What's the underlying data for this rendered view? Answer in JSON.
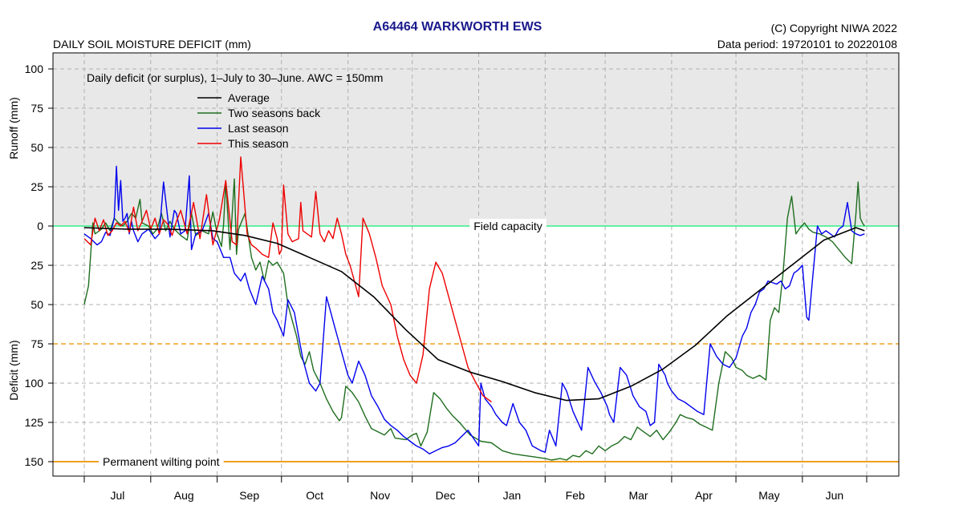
{
  "header": {
    "station": "A64464  WARKWORTH EWS",
    "chart_title": "DAILY SOIL MOISTURE DEFICIT (mm)",
    "copyright": "(C) Copyright NIWA  2022",
    "data_period": "Data period:  19720101  to  20220108"
  },
  "colors": {
    "background": "#ffffff",
    "runoff_zone": "#e8e8e8",
    "grid": "#b0b0b0",
    "average": "#000000",
    "two_seasons_back": "#1f6e1f",
    "last_season": "#0000ee",
    "this_season": "#ee0000",
    "field_capacity": "#33ee88",
    "awc_line": "#f0a020",
    "wilting_point": "#f0a020",
    "title": "#1a1a8c"
  },
  "chart_data": {
    "type": "line",
    "subtitle": "Daily deficit (or surplus), 1–July to 30–June.  AWC = 150mm",
    "ylabel_top": "Runoff (mm)",
    "ylabel_bottom": "Deficit (mm)",
    "ylim": [
      -160,
      110
    ],
    "y_ticks": [
      100,
      75,
      50,
      25,
      0,
      -25,
      -50,
      -75,
      -100,
      -125,
      -150
    ],
    "y_tick_labels": [
      "100",
      "75",
      "50",
      "25",
      "0",
      "25",
      "50",
      "75",
      "100",
      "125",
      "150"
    ],
    "xlim": [
      0,
      365
    ],
    "month_labels": [
      "Jul",
      "Aug",
      "Sep",
      "Oct",
      "Nov",
      "Dec",
      "Jan",
      "Feb",
      "Mar",
      "Apr",
      "May",
      "Jun"
    ],
    "month_boundaries": [
      0,
      31,
      62,
      92,
      123,
      153,
      184,
      215,
      243,
      274,
      304,
      335,
      365
    ],
    "grid": true,
    "legend_position": "top-left",
    "reference_lines": [
      {
        "name": "field_capacity",
        "label": "Field capacity",
        "y": 0
      },
      {
        "name": "awc_half",
        "label": "",
        "y": -75
      },
      {
        "name": "wilting_point",
        "label": "Permanent wilting point",
        "y": -150
      }
    ],
    "series": [
      {
        "name": "Average",
        "key": "average",
        "x": [
          0,
          20,
          40,
          60,
          75,
          90,
          105,
          120,
          135,
          150,
          165,
          180,
          195,
          210,
          225,
          240,
          255,
          270,
          285,
          300,
          315,
          330,
          345,
          360,
          364
        ],
        "y": [
          -1,
          -2,
          -2,
          -3,
          -6,
          -11,
          -20,
          -29,
          -45,
          -66,
          -85,
          -93,
          -99,
          -106,
          -111,
          -110,
          -102,
          -91,
          -76,
          -57,
          -41,
          -25,
          -9,
          -1,
          -3
        ]
      },
      {
        "name": "Two seasons back",
        "key": "two_seasons_back",
        "x": [
          0,
          2,
          4,
          5,
          8,
          10,
          12,
          14,
          16,
          18,
          20,
          22,
          24,
          26,
          27,
          30,
          32,
          34,
          36,
          38,
          40,
          42,
          45,
          48,
          50,
          52,
          55,
          58,
          60,
          62,
          64,
          65,
          66,
          68,
          70,
          71,
          72,
          75,
          78,
          80,
          82,
          84,
          86,
          88,
          90,
          93,
          95,
          97,
          99,
          101,
          103,
          105,
          107,
          110,
          113,
          116,
          119,
          120,
          122,
          125,
          128,
          131,
          134,
          137,
          140,
          143,
          145,
          150,
          153,
          155,
          157,
          158,
          160,
          163,
          166,
          169,
          172,
          175,
          180,
          185,
          190,
          195,
          200,
          205,
          210,
          215,
          218,
          222,
          225,
          228,
          231,
          234,
          237,
          240,
          243,
          246,
          249,
          252,
          255,
          258,
          261,
          264,
          267,
          270,
          273,
          276,
          278,
          281,
          284,
          287,
          290,
          293,
          296,
          299,
          302,
          304,
          307,
          309,
          312,
          315,
          318,
          320,
          322,
          324,
          326,
          328,
          330,
          332,
          334,
          336,
          338,
          340,
          343,
          346,
          349,
          352,
          355,
          358,
          360,
          361,
          362,
          363,
          364
        ],
        "y": [
          -50,
          -38,
          2,
          -5,
          -2,
          2,
          -3,
          5,
          2,
          0,
          3,
          8,
          5,
          17,
          2,
          0,
          -5,
          -2,
          8,
          -3,
          3,
          -2,
          -6,
          -9,
          8,
          -6,
          -3,
          -5,
          9,
          -5,
          -13,
          1,
          28,
          -15,
          30,
          -18,
          -2,
          8,
          -20,
          -28,
          -23,
          -35,
          -22,
          -25,
          -23,
          -30,
          -50,
          -60,
          -70,
          -83,
          -88,
          -80,
          -92,
          -100,
          -110,
          -118,
          -124,
          -122,
          -102,
          -106,
          -112,
          -121,
          -129,
          -131,
          -133,
          -129,
          -135,
          -136,
          -133,
          -132,
          -140,
          -137,
          -131,
          -106,
          -110,
          -116,
          -121,
          -125,
          -133,
          -137,
          -138,
          -143,
          -145,
          -146,
          -147,
          -148,
          -149,
          -148,
          -149,
          -146,
          -147,
          -143,
          -145,
          -140,
          -143,
          -140,
          -138,
          -134,
          -136,
          -128,
          -131,
          -134,
          -130,
          -136,
          -131,
          -125,
          -120,
          -122,
          -123,
          -126,
          -128,
          -130,
          -100,
          -80,
          -84,
          -90,
          -92,
          -95,
          -97,
          -95,
          -98,
          -60,
          -52,
          -55,
          -30,
          5,
          19,
          -5,
          -1,
          2,
          -2,
          -4,
          -5,
          -7,
          -10,
          -15,
          -20,
          -24,
          8,
          28,
          5,
          2,
          0
        ]
      },
      {
        "name": "Last season",
        "key": "last_season",
        "x": [
          0,
          3,
          6,
          8,
          10,
          12,
          14,
          15,
          16,
          17,
          18,
          19,
          20,
          21,
          22,
          23,
          25,
          27,
          30,
          33,
          35,
          37,
          40,
          42,
          43,
          45,
          47,
          49,
          50,
          52,
          55,
          58,
          60,
          62,
          65,
          68,
          70,
          73,
          75,
          77,
          80,
          83,
          86,
          88,
          90,
          93,
          95,
          98,
          100,
          102,
          105,
          108,
          110,
          113,
          115,
          117,
          119,
          121,
          123,
          125,
          128,
          131,
          134,
          137,
          140,
          143,
          146,
          149,
          152,
          155,
          158,
          161,
          164,
          167,
          170,
          173,
          176,
          179,
          184,
          185,
          187,
          190,
          192,
          195,
          197,
          200,
          203,
          206,
          209,
          213,
          215,
          217,
          220,
          223,
          225,
          228,
          232,
          235,
          238,
          241,
          244,
          245,
          247,
          250,
          253,
          256,
          259,
          262,
          264,
          266,
          268,
          271,
          272,
          274,
          277,
          280,
          283,
          286,
          289,
          292,
          295,
          298,
          301,
          304,
          307,
          309,
          311,
          313,
          315,
          317,
          319,
          321,
          323,
          325,
          327,
          329,
          331,
          333,
          335,
          337,
          338,
          340,
          342,
          344,
          346,
          348,
          350,
          352,
          354,
          356,
          358,
          360,
          362,
          364
        ],
        "y": [
          -5,
          -8,
          -12,
          -10,
          -4,
          -6,
          5,
          38,
          10,
          29,
          3,
          5,
          8,
          -5,
          3,
          -3,
          -10,
          -5,
          -2,
          -8,
          -5,
          28,
          -7,
          10,
          8,
          -5,
          -3,
          32,
          -15,
          -5,
          -3,
          8,
          -8,
          -10,
          -20,
          -20,
          -30,
          -35,
          -30,
          -40,
          -50,
          -32,
          -40,
          -55,
          -60,
          -70,
          -47,
          -55,
          -70,
          -85,
          -100,
          -105,
          -100,
          -45,
          -55,
          -65,
          -75,
          -85,
          -95,
          -100,
          -86,
          -95,
          -108,
          -115,
          -123,
          -127,
          -130,
          -134,
          -137,
          -140,
          -142,
          -145,
          -143,
          -141,
          -140,
          -138,
          -134,
          -130,
          -140,
          -100,
          -110,
          -115,
          -120,
          -125,
          -127,
          -113,
          -125,
          -130,
          -140,
          -143,
          -144,
          -130,
          -140,
          -100,
          -105,
          -118,
          -130,
          -90,
          -99,
          -106,
          -115,
          -120,
          -125,
          -90,
          -95,
          -108,
          -115,
          -118,
          -127,
          -125,
          -88,
          -95,
          -100,
          -105,
          -110,
          -112,
          -115,
          -118,
          -120,
          -75,
          -83,
          -88,
          -90,
          -84,
          -70,
          -65,
          -55,
          -50,
          -42,
          -40,
          -35,
          -36,
          -37,
          -35,
          -40,
          -38,
          -30,
          -28,
          -25,
          -58,
          -60,
          -30,
          0,
          -5,
          -3,
          -5,
          -7,
          -2,
          0,
          15,
          -3,
          -5,
          -6,
          -5
        ]
      },
      {
        "name": "This season",
        "key": "this_season",
        "x": [
          0,
          3,
          5,
          7,
          9,
          11,
          13,
          15,
          17,
          19,
          21,
          23,
          25,
          27,
          29,
          31,
          33,
          35,
          37,
          39,
          41,
          43,
          45,
          48,
          51,
          54,
          57,
          60,
          63,
          66,
          69,
          71,
          73,
          76,
          78,
          80,
          83,
          86,
          88,
          90,
          91,
          92,
          93,
          95,
          97,
          100,
          101,
          102,
          104,
          106,
          108,
          110,
          112,
          114,
          116,
          118,
          120,
          122,
          124,
          126,
          128,
          130,
          133,
          136,
          139,
          143,
          146,
          149,
          152,
          155,
          158,
          161,
          164,
          167,
          170,
          173,
          176,
          179,
          182,
          186,
          190
        ],
        "y": [
          -8,
          -12,
          5,
          -3,
          4,
          -6,
          -3,
          2,
          0,
          3,
          -4,
          12,
          -3,
          3,
          10,
          -2,
          5,
          -5,
          4,
          1,
          -6,
          3,
          10,
          -5,
          15,
          -8,
          20,
          -12,
          4,
          29,
          -10,
          -12,
          44,
          -5,
          -12,
          -14,
          -18,
          -20,
          2,
          -8,
          -18,
          -15,
          26,
          -5,
          -10,
          -8,
          15,
          -3,
          -5,
          -7,
          22,
          -5,
          -10,
          -3,
          -8,
          5,
          -5,
          -18,
          -25,
          -35,
          -45,
          5,
          -5,
          -20,
          -38,
          -50,
          -70,
          -85,
          -95,
          -100,
          -82,
          -40,
          -23,
          -30,
          -45,
          -60,
          -75,
          -90,
          -98,
          -108,
          -112
        ]
      }
    ]
  }
}
